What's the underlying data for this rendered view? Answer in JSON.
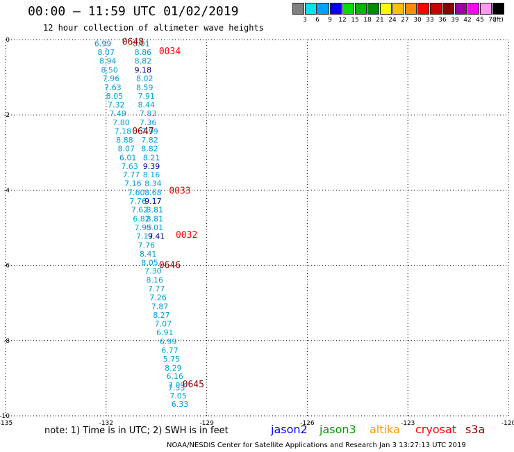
{
  "header": {
    "title": "00:00 – 11:59 UTC 01/02/2019",
    "subtitle": "12 hour collection of altimeter wave heights"
  },
  "legend": {
    "unit": "(ft)",
    "bins": [
      {
        "label": "3",
        "color": "#808080"
      },
      {
        "label": "6",
        "color": "#00e5e5"
      },
      {
        "label": "9",
        "color": "#00a0ff"
      },
      {
        "label": "12",
        "color": "#0000ff"
      },
      {
        "label": "15",
        "color": "#00e000"
      },
      {
        "label": "18",
        "color": "#00b800"
      },
      {
        "label": "21",
        "color": "#008800"
      },
      {
        "label": "24",
        "color": "#ffff00"
      },
      {
        "label": "27",
        "color": "#ffc000"
      },
      {
        "label": "30",
        "color": "#ff8c00"
      },
      {
        "label": "33",
        "color": "#ff0000"
      },
      {
        "label": "36",
        "color": "#cc0000"
      },
      {
        "label": "39",
        "color": "#8b0000"
      },
      {
        "label": "42",
        "color": "#a000a0"
      },
      {
        "label": "45",
        "color": "#ff00ff"
      },
      {
        "label": "70",
        "color": "#ff99ee"
      },
      {
        "label": "",
        "color": "#000000"
      }
    ]
  },
  "footer": {
    "note": "note:  1) Time is in UTC;  2) SWH is in feet",
    "satellites": [
      {
        "name": "jason2",
        "color": "#0000ff"
      },
      {
        "name": "jason3",
        "color": "#009900"
      },
      {
        "name": "altika",
        "color": "#ff9900"
      },
      {
        "name": "cryosat",
        "color": "#ff0000"
      },
      {
        "name": "s3a",
        "color": "#8b0000"
      }
    ],
    "credit": "NOAA/NESDIS Center for Satellite Applications and Research    Jan  3 13:27:13 UTC 2019"
  },
  "chart_data": {
    "type": "scatter",
    "title": "00:00 – 11:59 UTC 01/02/2019",
    "xlim": [
      -135,
      -120
    ],
    "ylim": [
      -10,
      0
    ],
    "x_ticks": [
      "-135",
      "-132",
      "-129",
      "-126",
      "-123",
      "-120"
    ],
    "y_ticks": [
      "0",
      "-2",
      "-4",
      "-6",
      "-8",
      "-10"
    ],
    "grid": true,
    "value_color_low": "#00a0d8",
    "value_color_high": "#00008b",
    "time_color_s3a": "#8b0000",
    "time_color_cryosat": "#ff0000",
    "tracks": [
      {
        "points": [
          {
            "x": -132.1,
            "y": -0.1,
            "v": "6.99"
          },
          {
            "x": -132.0,
            "y": -0.33,
            "v": "8.07"
          },
          {
            "x": -131.95,
            "y": -0.56,
            "v": "8.94"
          },
          {
            "x": -131.9,
            "y": -0.8,
            "v": "8.50"
          },
          {
            "x": -131.85,
            "y": -1.03,
            "v": "7.96"
          },
          {
            "x": -131.8,
            "y": -1.27,
            "v": "7.63"
          },
          {
            "x": -131.75,
            "y": -1.5,
            "v": "8.05"
          },
          {
            "x": -131.7,
            "y": -1.73,
            "v": "7.32"
          },
          {
            "x": -131.65,
            "y": -1.96,
            "v": "7.49"
          },
          {
            "x": -131.55,
            "y": -2.2,
            "v": "7.80"
          },
          {
            "x": -131.5,
            "y": -2.43,
            "v": "7.18"
          },
          {
            "x": -131.45,
            "y": -2.66,
            "v": "8.88"
          },
          {
            "x": -131.4,
            "y": -2.89,
            "v": "8.07"
          },
          {
            "x": -131.35,
            "y": -3.13,
            "v": "6.01"
          },
          {
            "x": -131.3,
            "y": -3.36,
            "v": "7.63"
          },
          {
            "x": -131.25,
            "y": -3.59,
            "v": "7.77"
          },
          {
            "x": -131.2,
            "y": -3.82,
            "v": "7.16"
          },
          {
            "x": -131.1,
            "y": -4.06,
            "v": "7.60"
          },
          {
            "x": -131.05,
            "y": -4.29,
            "v": "7.76"
          },
          {
            "x": -131.0,
            "y": -4.52,
            "v": "7.62"
          },
          {
            "x": -130.95,
            "y": -4.76,
            "v": "6.82"
          },
          {
            "x": -130.9,
            "y": -4.99,
            "v": "7.95"
          },
          {
            "x": -130.85,
            "y": -5.22,
            "v": "7.17"
          },
          {
            "x": -130.8,
            "y": -5.46,
            "v": "7.76"
          },
          {
            "x": -130.75,
            "y": -5.69,
            "v": "8.41"
          },
          {
            "x": -130.7,
            "y": -5.92,
            "v": "8.05"
          },
          {
            "x": -130.6,
            "y": -6.15,
            "v": "7.30"
          },
          {
            "x": -130.55,
            "y": -6.39,
            "v": "8.16"
          },
          {
            "x": -130.5,
            "y": -6.62,
            "v": "7.77"
          },
          {
            "x": -130.45,
            "y": -6.85,
            "v": "7.26"
          },
          {
            "x": -130.4,
            "y": -7.09,
            "v": "7.87"
          },
          {
            "x": -130.35,
            "y": -7.32,
            "v": "8.27"
          },
          {
            "x": -130.3,
            "y": -7.55,
            "v": "7.07"
          },
          {
            "x": -130.25,
            "y": -7.78,
            "v": "6.91"
          },
          {
            "x": -130.15,
            "y": -8.02,
            "v": "6.99"
          },
          {
            "x": -130.1,
            "y": -8.25,
            "v": "6.77"
          },
          {
            "x": -130.05,
            "y": -8.48,
            "v": "5.75"
          },
          {
            "x": -130.0,
            "y": -8.72,
            "v": "8.29"
          },
          {
            "x": -129.95,
            "y": -8.95,
            "v": "6.16"
          },
          {
            "x": -129.9,
            "y": -9.18,
            "v": "7.09"
          },
          {
            "x": -129.9,
            "y": -9.25,
            "v": "7.53"
          },
          {
            "x": -129.85,
            "y": -9.46,
            "v": "7.05"
          },
          {
            "x": -129.8,
            "y": -9.69,
            "v": "6.33"
          }
        ]
      },
      {
        "points": [
          {
            "x": -130.95,
            "y": -0.1,
            "v": "8.01"
          },
          {
            "x": -130.9,
            "y": -0.33,
            "v": "8.86"
          },
          {
            "x": -130.9,
            "y": -0.56,
            "v": "8.82"
          },
          {
            "x": -130.9,
            "y": -0.8,
            "v": "9.18"
          },
          {
            "x": -130.85,
            "y": -1.03,
            "v": "8.02"
          },
          {
            "x": -130.85,
            "y": -1.27,
            "v": "8.59"
          },
          {
            "x": -130.8,
            "y": -1.5,
            "v": "7.91"
          },
          {
            "x": -130.8,
            "y": -1.73,
            "v": "8.44"
          },
          {
            "x": -130.75,
            "y": -1.96,
            "v": "7.83"
          },
          {
            "x": -130.75,
            "y": -2.2,
            "v": "7.36"
          },
          {
            "x": -130.7,
            "y": -2.43,
            "v": "7.99"
          },
          {
            "x": -130.7,
            "y": -2.66,
            "v": "7.82"
          },
          {
            "x": -130.7,
            "y": -2.89,
            "v": "8.82"
          },
          {
            "x": -130.65,
            "y": -3.13,
            "v": "8.21"
          },
          {
            "x": -130.65,
            "y": -3.36,
            "v": "9.39"
          },
          {
            "x": -130.65,
            "y": -3.59,
            "v": "8.16"
          },
          {
            "x": -130.6,
            "y": -3.82,
            "v": "8.34"
          },
          {
            "x": -130.6,
            "y": -4.06,
            "v": "8.68"
          },
          {
            "x": -130.6,
            "y": -4.29,
            "v": "9.17"
          },
          {
            "x": -130.55,
            "y": -4.52,
            "v": "8.81"
          },
          {
            "x": -130.55,
            "y": -4.76,
            "v": "8.81"
          },
          {
            "x": -130.55,
            "y": -4.99,
            "v": "8.01"
          },
          {
            "x": -130.5,
            "y": -5.22,
            "v": "9.41"
          }
        ]
      }
    ],
    "time_labels": [
      {
        "x": -131.2,
        "y": -0.05,
        "t": "0648",
        "sat": "s3a"
      },
      {
        "x": -130.1,
        "y": -0.3,
        "t": "0034",
        "sat": "cryosat"
      },
      {
        "x": -130.9,
        "y": -2.42,
        "t": "0647",
        "sat": "s3a"
      },
      {
        "x": -129.8,
        "y": -4.0,
        "t": "0033",
        "sat": "cryosat"
      },
      {
        "x": -129.6,
        "y": -5.18,
        "t": "0032",
        "sat": "cryosat"
      },
      {
        "x": -130.1,
        "y": -5.98,
        "t": "0646",
        "sat": "s3a"
      },
      {
        "x": -129.4,
        "y": -9.15,
        "t": "0645",
        "sat": "s3a"
      }
    ]
  }
}
